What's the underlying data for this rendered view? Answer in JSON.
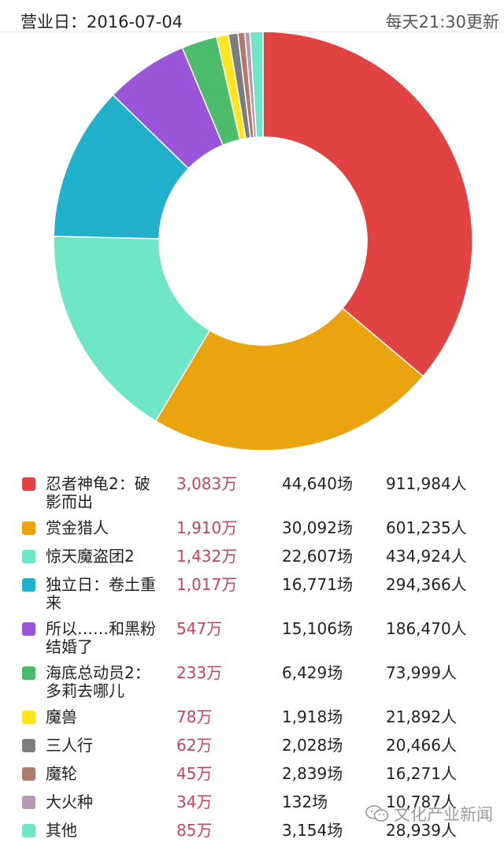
{
  "header": {
    "date_label": "营业日：2016-07-04",
    "update_label": "每天21:30更新"
  },
  "watermark": {
    "text": "文化产业新闻"
  },
  "colors": {
    "box_office_text": "#c8435c",
    "slice_separator": "#ffffff"
  },
  "chart_data": {
    "type": "pie",
    "subtype": "donut",
    "title": "",
    "unit": "万",
    "categories": [
      "忍者神龟2：破影而出",
      "赏金猎人",
      "惊天魔盗团2",
      "独立日：卷土重来",
      "所以……和黑粉结婚了",
      "海底总动员2：多莉去哪儿",
      "魔兽",
      "三人行",
      "魔轮",
      "大火种",
      "其他"
    ],
    "values": [
      3083,
      1910,
      1432,
      1017,
      547,
      233,
      78,
      62,
      45,
      34,
      85
    ],
    "colors": [
      "#e04342",
      "#eaa410",
      "#6fe6c8",
      "#22b1cc",
      "#9b55d9",
      "#4dbb6c",
      "#ffe41f",
      "#7d7d7d",
      "#b07a6c",
      "#b99ab5",
      "#6fe6c8"
    ]
  },
  "rows": [
    {
      "name": "忍者神龟2：破影而出",
      "box": "3,083万",
      "shows": "44,640场",
      "people": "911,984人",
      "color": "#e04342"
    },
    {
      "name": "赏金猎人",
      "box": "1,910万",
      "shows": "30,092场",
      "people": "601,235人",
      "color": "#eaa410"
    },
    {
      "name": "惊天魔盗团2",
      "box": "1,432万",
      "shows": "22,607场",
      "people": "434,924人",
      "color": "#6fe6c8"
    },
    {
      "name": "独立日：卷土重来",
      "box": "1,017万",
      "shows": "16,771场",
      "people": "294,366人",
      "color": "#22b1cc"
    },
    {
      "name": "所以……和黑粉结婚了",
      "box": "547万",
      "shows": "15,106场",
      "people": "186,470人",
      "color": "#9b55d9"
    },
    {
      "name": "海底总动员2：多莉去哪儿",
      "box": "233万",
      "shows": "6,429场",
      "people": "73,999人",
      "color": "#4dbb6c"
    },
    {
      "name": "魔兽",
      "box": "78万",
      "shows": "1,918场",
      "people": "21,892人",
      "color": "#ffe41f"
    },
    {
      "name": "三人行",
      "box": "62万",
      "shows": "2,028场",
      "people": "20,466人",
      "color": "#7d7d7d"
    },
    {
      "name": "魔轮",
      "box": "45万",
      "shows": "2,839场",
      "people": "16,271人",
      "color": "#b07a6c"
    },
    {
      "name": "大火种",
      "box": "34万",
      "shows": "132场",
      "people": "10,787人",
      "color": "#b99ab5"
    },
    {
      "name": "其他",
      "box": "85万",
      "shows": "3,154场",
      "people": "28,939人",
      "color": "#6fe6c8"
    }
  ]
}
